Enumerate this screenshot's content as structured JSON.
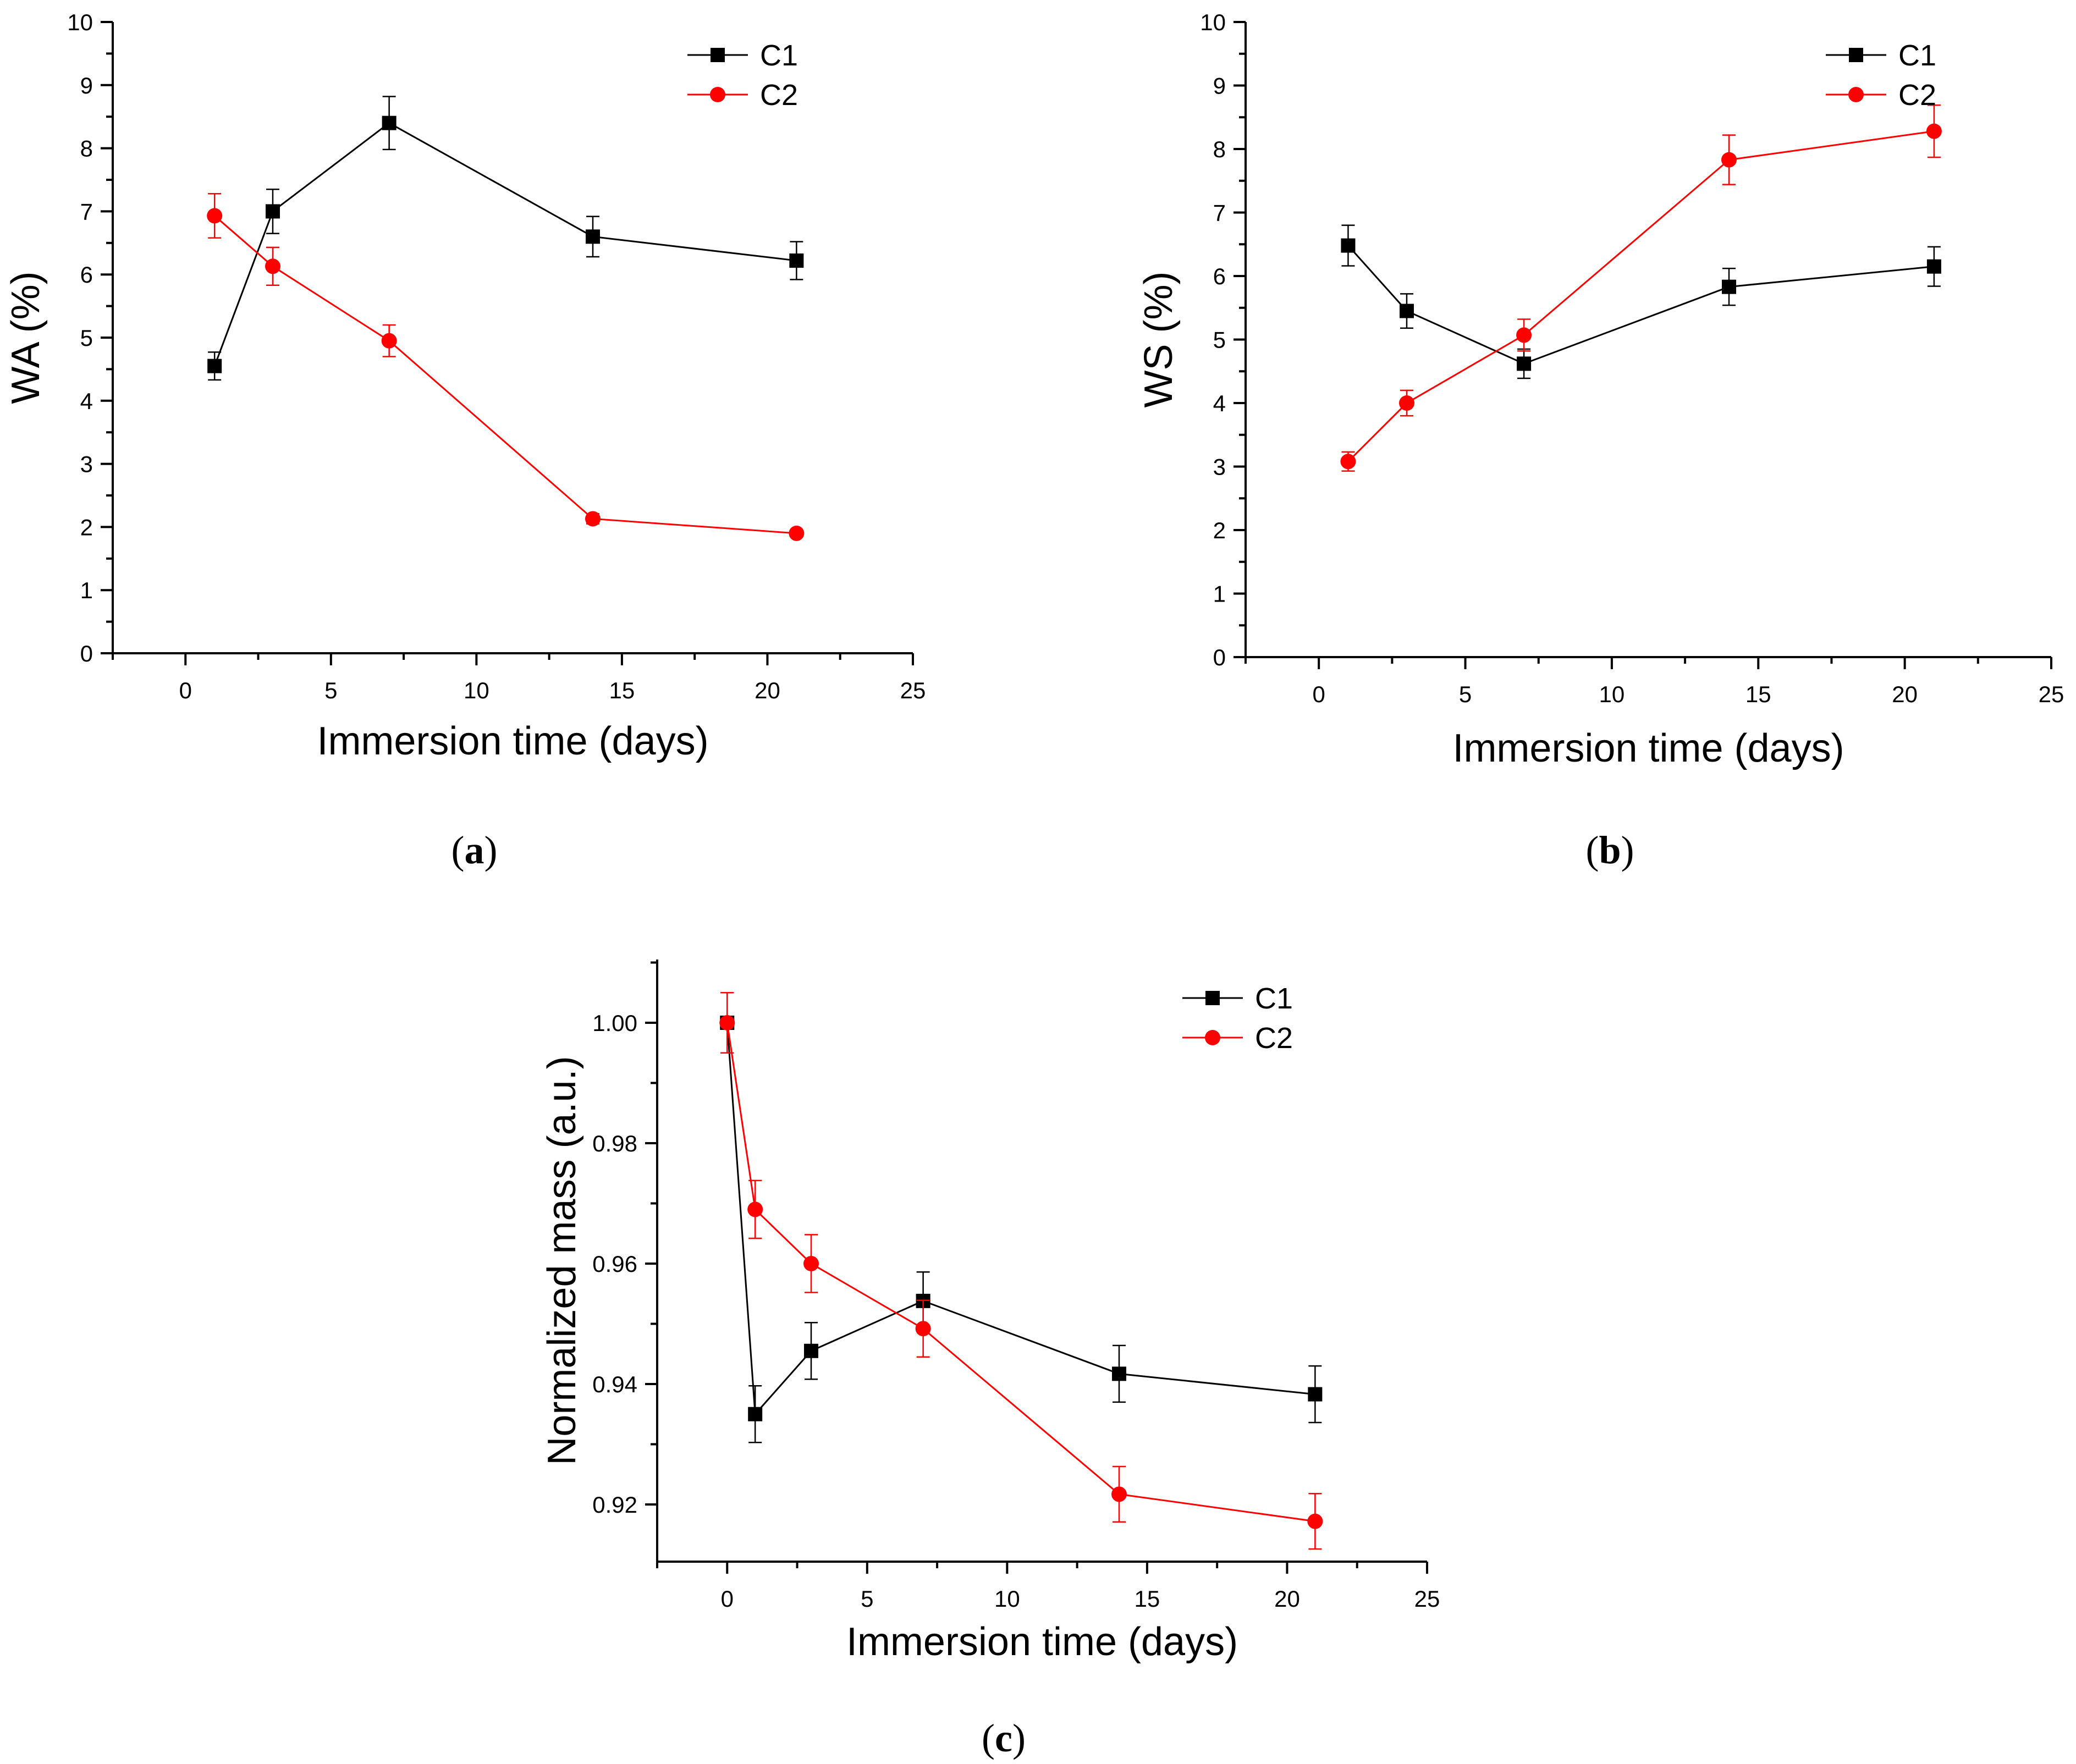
{
  "chart_data": [
    {
      "type": "line",
      "panel": "a",
      "caption": "(a)",
      "caption_letter": "a",
      "xlabel": "Immersion time (days)",
      "ylabel": "WA (%)",
      "xlim": [
        -2.5,
        25
      ],
      "ylim": [
        0,
        10
      ],
      "xticks": [
        0,
        5,
        10,
        15,
        20,
        25
      ],
      "yticks": [
        0,
        1,
        2,
        3,
        4,
        5,
        6,
        7,
        8,
        9,
        10
      ],
      "grid": false,
      "legend": "top-right",
      "series": [
        {
          "name": "C1",
          "color": "#000000",
          "marker": "square",
          "x": [
            1,
            3,
            7,
            14,
            21
          ],
          "y": [
            4.55,
            7.0,
            8.4,
            6.6,
            6.22
          ],
          "error": [
            0.22,
            0.35,
            0.42,
            0.32,
            0.3
          ]
        },
        {
          "name": "C2",
          "color": "#ff0000",
          "marker": "circle",
          "x": [
            1,
            3,
            7,
            14,
            21
          ],
          "y": [
            6.93,
            6.13,
            4.95,
            2.13,
            1.9
          ],
          "error": [
            0.35,
            0.3,
            0.25,
            0.08,
            0.05
          ]
        }
      ]
    },
    {
      "type": "line",
      "panel": "b",
      "caption": "(b)",
      "caption_letter": "b",
      "xlabel": "Immersion time (days)",
      "ylabel": "WS (%)",
      "xlim": [
        -2.5,
        25
      ],
      "ylim": [
        0,
        10
      ],
      "xticks": [
        0,
        5,
        10,
        15,
        20,
        25
      ],
      "yticks": [
        0,
        1,
        2,
        3,
        4,
        5,
        6,
        7,
        8,
        9,
        10
      ],
      "grid": false,
      "legend": "top-right",
      "series": [
        {
          "name": "C1",
          "color": "#000000",
          "marker": "square",
          "x": [
            1,
            3,
            7,
            14,
            21
          ],
          "y": [
            6.48,
            5.45,
            4.62,
            5.83,
            6.15
          ],
          "error": [
            0.32,
            0.27,
            0.23,
            0.29,
            0.31
          ]
        },
        {
          "name": "C2",
          "color": "#ff0000",
          "marker": "circle",
          "x": [
            1,
            3,
            7,
            14,
            21
          ],
          "y": [
            3.08,
            4.0,
            5.07,
            7.83,
            8.28
          ],
          "error": [
            0.15,
            0.2,
            0.25,
            0.39,
            0.41
          ]
        }
      ]
    },
    {
      "type": "line",
      "panel": "c",
      "caption": "(c)",
      "caption_letter": "c",
      "xlabel": "Immersion time (days)",
      "ylabel": "Normalized mass (a.u.)",
      "xlim": [
        -2.5,
        25
      ],
      "ylim": [
        0.9105,
        1.0105
      ],
      "xticks": [
        0,
        5,
        10,
        15,
        20,
        25
      ],
      "yticks": [
        0.92,
        0.94,
        0.96,
        0.98,
        1.0
      ],
      "ytick_labels": [
        "0.92",
        "0.94",
        "0.96",
        "0.98",
        "1.00"
      ],
      "grid": false,
      "legend": "top-right",
      "series": [
        {
          "name": "C1",
          "color": "#000000",
          "marker": "square",
          "x": [
            0,
            1,
            3,
            7,
            14,
            21
          ],
          "y": [
            1.0,
            0.935,
            0.9455,
            0.9538,
            0.9417,
            0.9383
          ],
          "error": [
            0.005,
            0.0047,
            0.0047,
            0.0048,
            0.0047,
            0.0047
          ]
        },
        {
          "name": "C2",
          "color": "#ff0000",
          "marker": "circle",
          "x": [
            0,
            1,
            3,
            7,
            14,
            21
          ],
          "y": [
            1.0,
            0.969,
            0.96,
            0.9492,
            0.9217,
            0.9172
          ],
          "error": [
            0.005,
            0.0048,
            0.0048,
            0.0047,
            0.0046,
            0.0046
          ]
        }
      ]
    }
  ]
}
